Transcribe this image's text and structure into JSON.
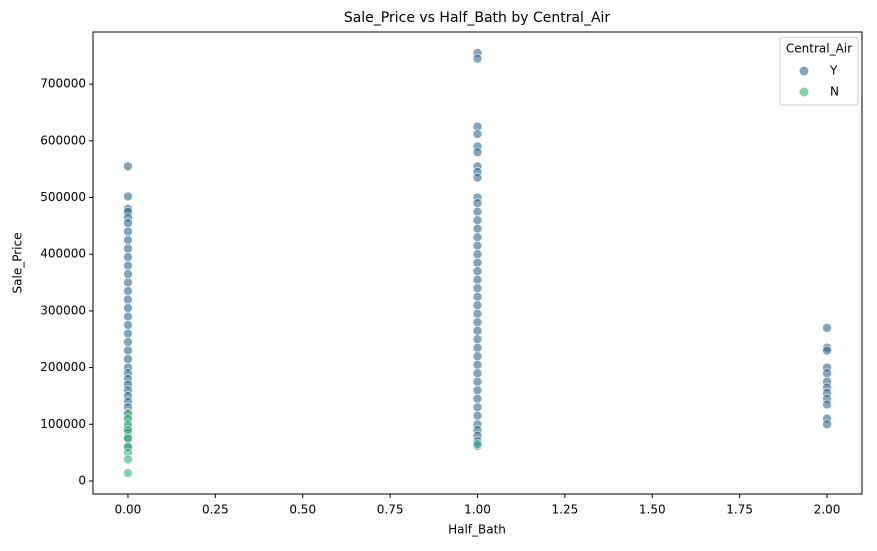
{
  "chart_data": {
    "type": "scatter",
    "title": "Sale_Price vs Half_Bath by Central_Air",
    "x_label": "Half_Bath",
    "y_label": "Sale_Price",
    "legend_title": "Central_Air",
    "legend": "upper right",
    "xlim": [
      -0.1,
      2.1
    ],
    "ylim": [
      -23000,
      792000
    ],
    "xticks": [
      {
        "value": 0,
        "label": "0.00"
      },
      {
        "value": 0.25,
        "label": "0.25"
      },
      {
        "value": 0.5,
        "label": "0.50"
      },
      {
        "value": 0.75,
        "label": "0.75"
      },
      {
        "value": 1,
        "label": "1.00"
      },
      {
        "value": 1.25,
        "label": "1.25"
      },
      {
        "value": 1.5,
        "label": "1.50"
      },
      {
        "value": 1.75,
        "label": "1.75"
      },
      {
        "value": 2,
        "label": "2.00"
      }
    ],
    "yticks": [
      0,
      100000,
      200000,
      300000,
      400000,
      500000,
      600000,
      700000
    ],
    "series": [
      {
        "name": "Y",
        "color": "#31688e",
        "x": [
          0,
          0,
          0,
          0,
          0,
          0,
          0,
          0,
          0,
          0,
          0,
          0,
          0,
          0,
          0,
          0,
          0,
          0,
          0,
          0,
          0,
          0,
          0,
          0,
          0,
          0,
          0,
          0,
          0,
          0,
          0,
          0,
          0,
          0,
          0,
          0,
          1,
          1,
          1,
          1,
          1,
          1,
          1,
          1,
          1,
          1,
          1,
          1,
          1,
          1,
          1,
          1,
          1,
          1,
          1,
          1,
          1,
          1,
          1,
          1,
          1,
          1,
          1,
          1,
          1,
          1,
          1,
          1,
          1,
          1,
          1,
          1,
          1,
          1,
          1,
          1,
          1,
          2,
          2,
          2,
          2,
          2,
          2,
          2,
          2,
          2,
          2,
          2,
          2
        ],
        "values": [
          555000,
          502000,
          480000,
          475000,
          465000,
          455000,
          440000,
          425000,
          410000,
          395000,
          380000,
          365000,
          350000,
          335000,
          320000,
          305000,
          290000,
          275000,
          260000,
          245000,
          230000,
          215000,
          200000,
          190000,
          180000,
          170000,
          160000,
          150000,
          140000,
          130000,
          120000,
          110000,
          95000,
          85000,
          75000,
          60000,
          755000,
          745000,
          625000,
          612000,
          590000,
          580000,
          555000,
          545000,
          535000,
          500000,
          490000,
          475000,
          460000,
          445000,
          430000,
          415000,
          400000,
          385000,
          370000,
          355000,
          340000,
          325000,
          310000,
          295000,
          280000,
          265000,
          250000,
          235000,
          220000,
          205000,
          190000,
          175000,
          160000,
          145000,
          130000,
          115000,
          100000,
          90000,
          80000,
          70000,
          62000,
          270000,
          235000,
          230000,
          200000,
          190000,
          175000,
          165000,
          155000,
          145000,
          135000,
          110000,
          100000
        ]
      },
      {
        "name": "N",
        "color": "#35b779",
        "x": [
          0,
          0,
          0,
          0,
          0,
          0,
          0,
          0,
          0,
          1
        ],
        "values": [
          118000,
          110000,
          100000,
          90000,
          75000,
          60000,
          50000,
          38000,
          14000,
          65000
        ]
      }
    ]
  }
}
